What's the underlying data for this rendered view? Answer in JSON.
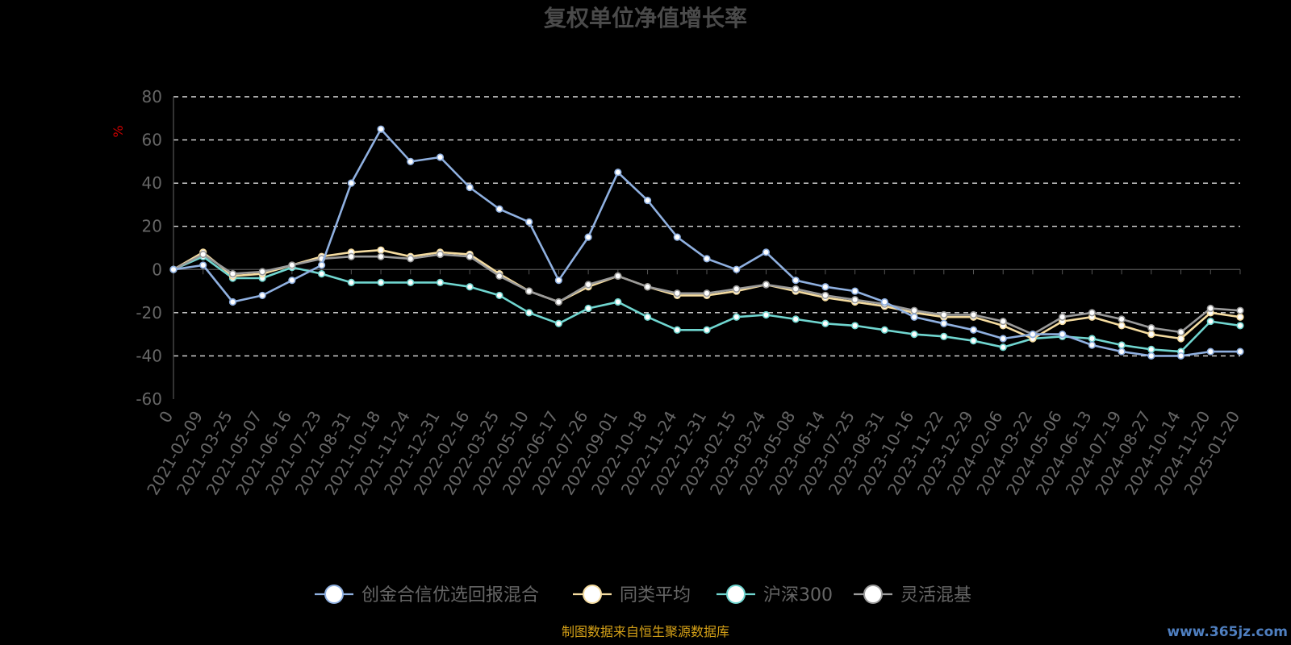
{
  "chart_data": {
    "type": "line",
    "title": "复权单位净值增长率",
    "ylabel": "%",
    "xlabel": "",
    "ylim": [
      -60,
      80
    ],
    "yticks": [
      80,
      60,
      40,
      20,
      0,
      -20,
      -40,
      -60
    ],
    "grid": true,
    "legend_position": "bottom",
    "x_tick_labels": [
      "0",
      "2021-02-09",
      "2021-03-25",
      "2021-05-07",
      "2021-06-16",
      "2021-07-23",
      "2021-08-31",
      "2021-10-18",
      "2021-11-24",
      "2021-12-31",
      "2022-02-16",
      "2022-03-25",
      "2022-05-10",
      "2022-06-17",
      "2022-07-26",
      "2022-09-01",
      "2022-10-18",
      "2022-11-24",
      "2022-12-31",
      "2023-02-15",
      "2023-03-24",
      "2023-05-08",
      "2023-06-14",
      "2023-07-25",
      "2023-08-31",
      "2023-10-16",
      "2023-11-22",
      "2023-12-29",
      "2024-02-06",
      "2024-03-22",
      "2024-05-06",
      "2024-06-13",
      "2024-07-19",
      "2024-08-27",
      "2024-10-14",
      "2024-11-20",
      "2025-01-20"
    ],
    "series": [
      {
        "name": "创金合信优选回报混合",
        "color": "#8fb0e0",
        "values": [
          0,
          2,
          -15,
          -12,
          -5,
          2,
          40,
          65,
          50,
          52,
          38,
          28,
          22,
          -5,
          15,
          45,
          32,
          15,
          5,
          0,
          8,
          -5,
          -8,
          -10,
          -15,
          -22,
          -25,
          -28,
          -32,
          -30,
          -30,
          -35,
          -38,
          -40,
          -40,
          -38,
          -38
        ]
      },
      {
        "name": "同类平均",
        "color": "#f5dca0",
        "values": [
          0,
          8,
          -3,
          -2,
          2,
          6,
          8,
          9,
          6,
          8,
          7,
          -2,
          -10,
          -15,
          -8,
          -3,
          -8,
          -12,
          -12,
          -10,
          -7,
          -10,
          -13,
          -15,
          -17,
          -20,
          -22,
          -22,
          -26,
          -32,
          -24,
          -22,
          -26,
          -30,
          -32,
          -20,
          -22
        ]
      },
      {
        "name": "沪深300",
        "color": "#70d6d0",
        "values": [
          0,
          6,
          -4,
          -4,
          1,
          -2,
          -6,
          -6,
          -6,
          -6,
          -8,
          -12,
          -20,
          -25,
          -18,
          -15,
          -22,
          -28,
          -28,
          -22,
          -21,
          -23,
          -25,
          -26,
          -28,
          -30,
          -31,
          -33,
          -36,
          -32,
          -31,
          -32,
          -35,
          -37,
          -38,
          -24,
          -26
        ]
      },
      {
        "name": "灵活混基",
        "color": "#9a9a9a",
        "values": [
          0,
          7,
          -2,
          -1,
          2,
          5,
          6,
          6,
          5,
          7,
          6,
          -3,
          -10,
          -15,
          -7,
          -3,
          -8,
          -11,
          -11,
          -9,
          -7,
          -9,
          -12,
          -14,
          -16,
          -19,
          -21,
          -21,
          -24,
          -30,
          -22,
          -20,
          -23,
          -27,
          -29,
          -18,
          -19
        ]
      }
    ]
  },
  "source_note": "制图数据来自恒生聚源数据库",
  "watermark": "www.365jz.com"
}
